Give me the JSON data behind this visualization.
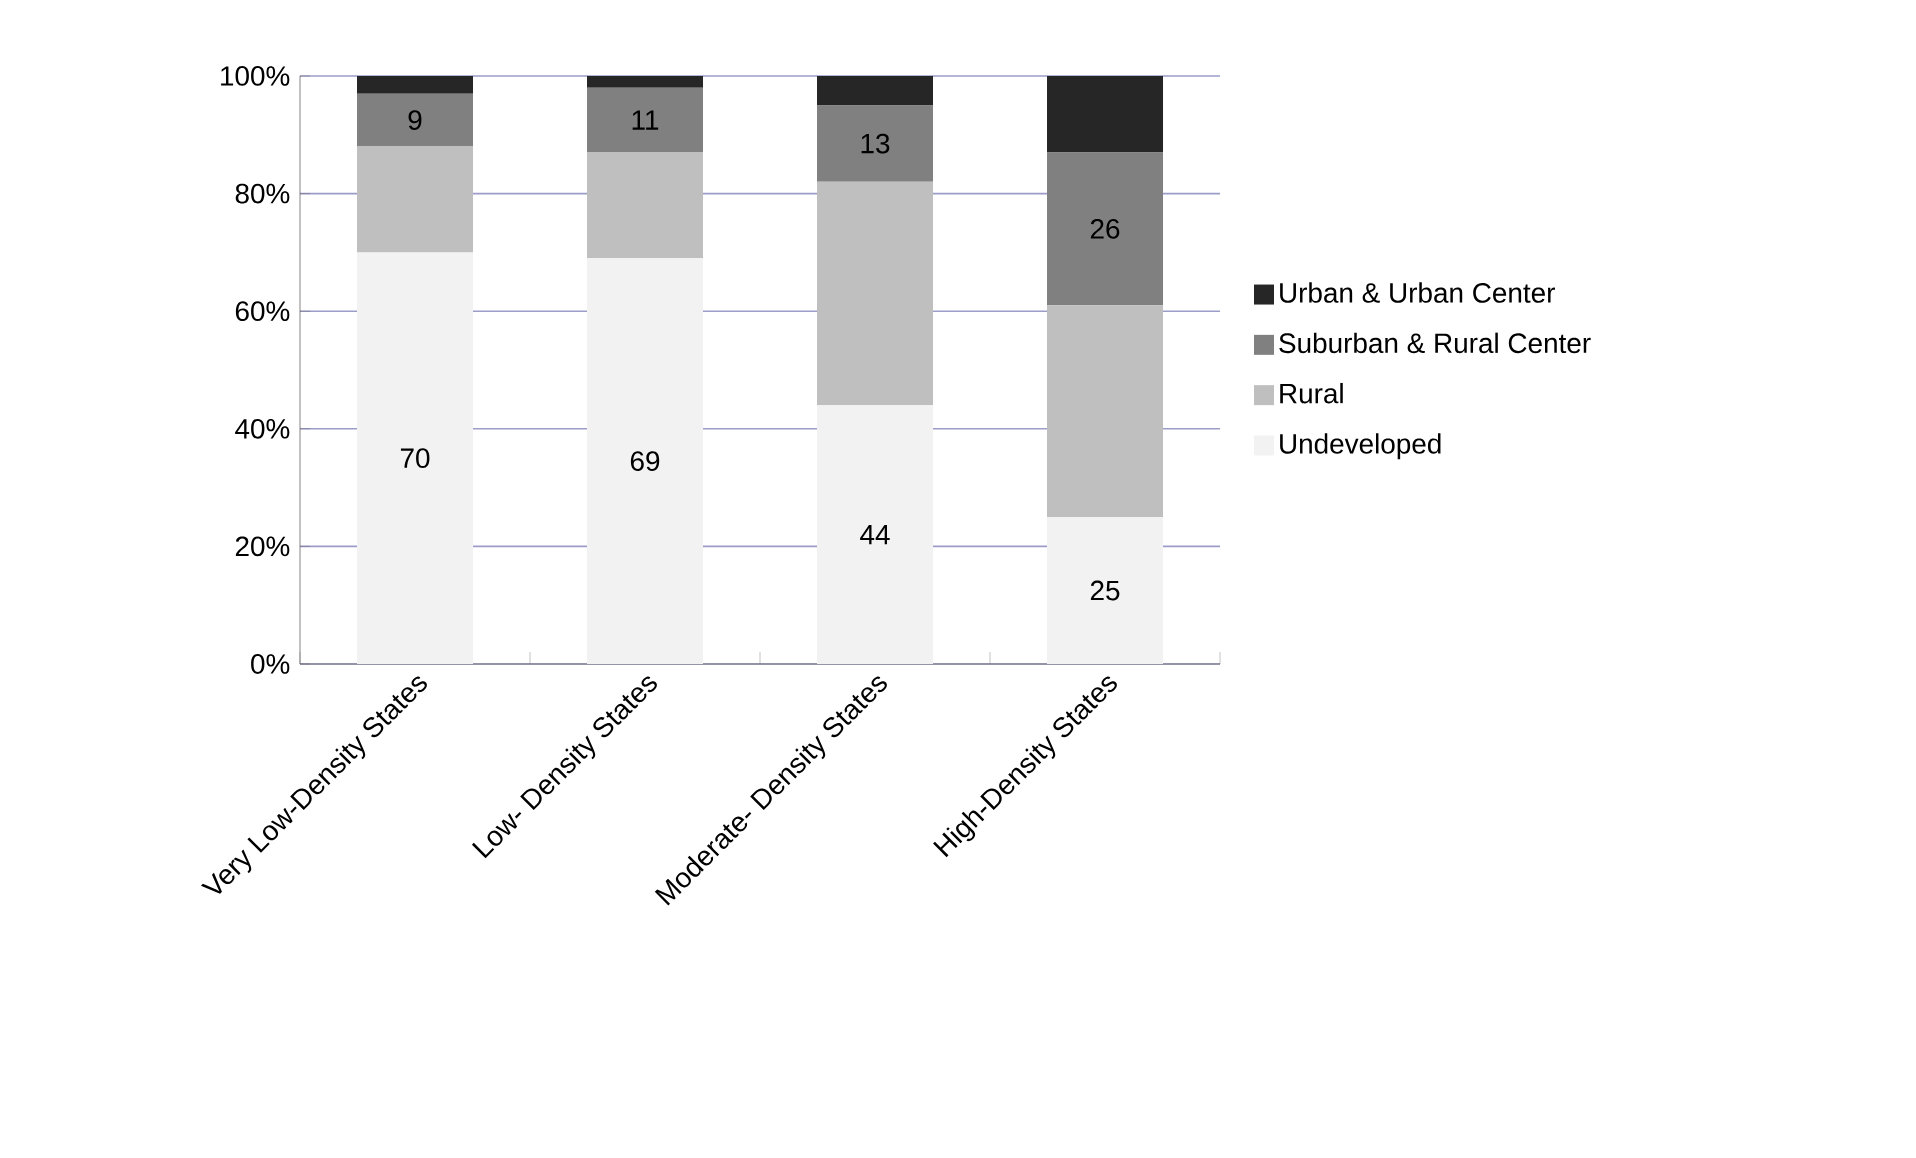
{
  "chart_data": {
    "type": "bar",
    "stacked": true,
    "categories": [
      "Very Low-Density States",
      "Low- Density States",
      "Moderate- Density States",
      "High-Density States"
    ],
    "series": [
      {
        "name": "Undeveloped",
        "color": "#f2f2f2",
        "values": [
          70,
          69,
          44,
          25
        ],
        "value_labels": [
          "70",
          "69",
          "44",
          "25"
        ]
      },
      {
        "name": "Rural",
        "color": "#bfbfbf",
        "values": [
          18,
          18,
          38,
          36
        ],
        "value_labels": [
          null,
          null,
          null,
          null
        ]
      },
      {
        "name": "Suburban & Rural Center",
        "color": "#808080",
        "values": [
          9,
          11,
          13,
          26
        ],
        "value_labels": [
          "9",
          "11",
          "13",
          "26"
        ]
      },
      {
        "name": "Urban & Urban Center",
        "color": "#262626",
        "values": [
          3,
          2,
          5,
          13
        ],
        "value_labels": [
          null,
          null,
          null,
          null
        ]
      }
    ],
    "ylim": [
      0,
      100
    ],
    "yticks": [
      {
        "value": 0,
        "label": "0%"
      },
      {
        "value": 20,
        "label": "20%"
      },
      {
        "value": 40,
        "label": "40%"
      },
      {
        "value": 60,
        "label": "60%"
      },
      {
        "value": 80,
        "label": "80%"
      },
      {
        "value": 100,
        "label": "100%"
      }
    ],
    "grid": "y",
    "legend": "right"
  }
}
